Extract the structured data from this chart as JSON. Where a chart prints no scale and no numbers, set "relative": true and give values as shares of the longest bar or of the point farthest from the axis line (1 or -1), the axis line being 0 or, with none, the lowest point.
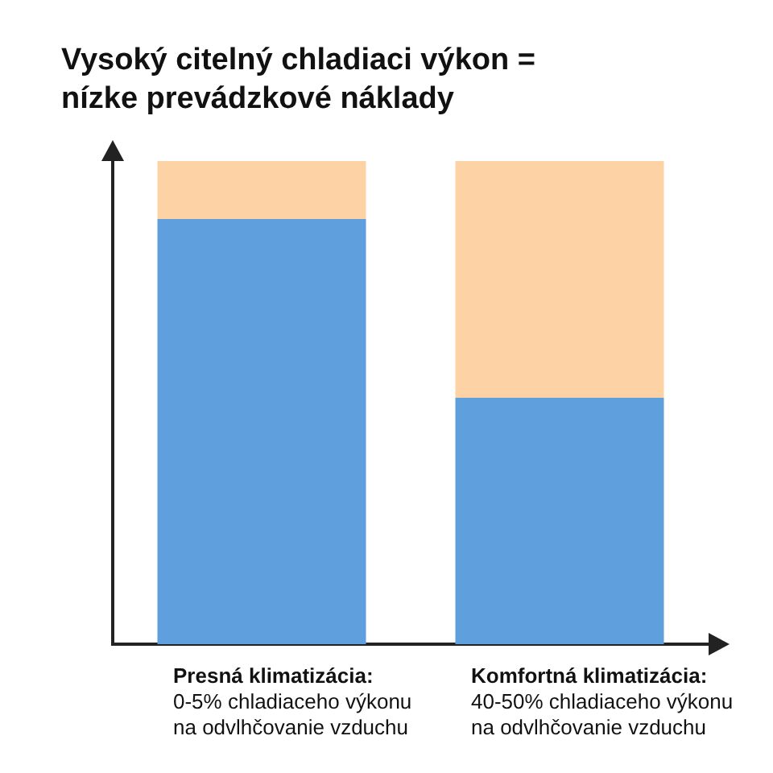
{
  "chart_data": {
    "type": "bar",
    "title": "Vysoký citelný chladiaci výkon =\nnízke prevádzkové náklady",
    "relative": true,
    "stacked": true,
    "grid": false,
    "legend": false,
    "categories": [
      "Presná klimatizácia:\n0-5% chladiaceho výkonu\nna odvlhčovanie vzduchu",
      "Komfortná klimatizácia:\n40-50% chladiaceho výkonu\nna odvlhčovanie vzduchu"
    ],
    "series": [
      {
        "color": "#5f9fde",
        "values": [
          0.88,
          0.51
        ]
      },
      {
        "color": "#fdd3a5",
        "values": [
          0.12,
          0.49
        ]
      }
    ]
  }
}
